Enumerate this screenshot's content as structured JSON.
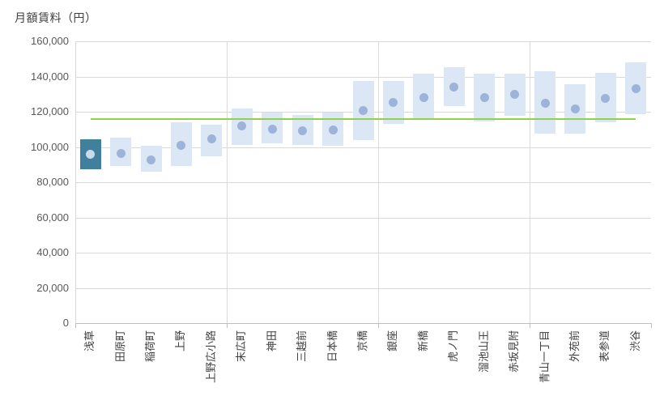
{
  "chart_data": {
    "type": "bar",
    "subtype": "floating-range-bars-with-average-markers",
    "title": "月額賃料（円）",
    "categories": [
      "浅草",
      "田原町",
      "稲荷町",
      "上野",
      "上野広小路",
      "末広町",
      "神田",
      "三越前",
      "日本橋",
      "京橋",
      "銀座",
      "新橋",
      "虎ノ門",
      "溜池山王",
      "赤坂見附",
      "青山一丁目",
      "外苑前",
      "表参道",
      "渋谷"
    ],
    "series": [
      {
        "name": "range_min",
        "values": [
          87500,
          89000,
          86000,
          89000,
          94500,
          101000,
          102000,
          101000,
          100500,
          104000,
          113000,
          116000,
          123000,
          114500,
          117500,
          107500,
          107500,
          114000,
          118500
        ]
      },
      {
        "name": "range_max",
        "values": [
          104500,
          105500,
          100500,
          114000,
          112500,
          122000,
          119500,
          118000,
          119500,
          137500,
          137500,
          141500,
          145500,
          141500,
          141500,
          143000,
          135500,
          142000,
          148000
        ]
      },
      {
        "name": "average",
        "values": [
          96000,
          96500,
          92500,
          101000,
          104500,
          112000,
          110000,
          109000,
          109500,
          120500,
          125500,
          128000,
          134000,
          128000,
          130000,
          125000,
          121500,
          127500,
          133000
        ]
      }
    ],
    "reference_line": {
      "value": 116000
    },
    "highlighted_category": "浅草",
    "highlighted_index": 0,
    "ylim": [
      0,
      160000
    ],
    "y_ticks": {
      "values": [
        0,
        20000,
        40000,
        60000,
        80000,
        100000,
        120000,
        140000,
        160000
      ],
      "labels": [
        "0",
        "20,000",
        "40,000",
        "60,000",
        "80,000",
        "100,000",
        "120,000",
        "140,000",
        "160,000"
      ]
    },
    "group_separators": [
      5,
      10,
      15
    ],
    "grid": "horizontal-major-and-vertical-group",
    "legend": "none",
    "colors": {
      "range_bar": "#dbe7f4",
      "highlight_bar": "#40809c",
      "marker": "#9db3d9",
      "marker_on_highlight": "#c9daec",
      "reference": "#92d050",
      "gridline": "#d9d9d9",
      "axis": "#bfbfbf",
      "label_text": "#595959",
      "title_text": "#404040"
    }
  }
}
